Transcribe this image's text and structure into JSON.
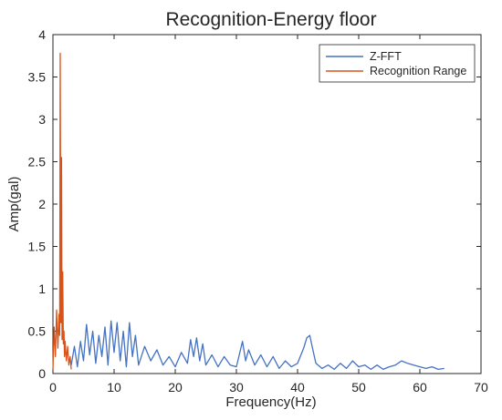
{
  "chart_data": {
    "type": "line",
    "title": "Recognition-Energy floor",
    "xlabel": "Frequency(Hz)",
    "ylabel": "Amp(gal)",
    "xlim": [
      0,
      70
    ],
    "ylim": [
      0,
      4
    ],
    "x_ticks": [
      "0",
      "10",
      "20",
      "30",
      "40",
      "50",
      "60",
      "70"
    ],
    "y_ticks": [
      "0",
      "0.5",
      "1",
      "1.5",
      "2",
      "2.5",
      "3",
      "3.5",
      "4"
    ],
    "grid": false,
    "legend_position": "top-right",
    "series": [
      {
        "name": "Z-FFT",
        "color": "#4472c4",
        "x": [
          3.0,
          3.5,
          4.0,
          4.5,
          5.0,
          5.5,
          6.0,
          6.5,
          7.0,
          7.5,
          8.0,
          8.5,
          9.0,
          9.5,
          10.0,
          10.5,
          11.0,
          11.5,
          12.0,
          12.5,
          13.0,
          13.5,
          14.0,
          15.0,
          16.0,
          17.0,
          18.0,
          19.0,
          20.0,
          21.0,
          22.0,
          22.5,
          23.0,
          23.5,
          24.0,
          24.5,
          25.0,
          26.0,
          27.0,
          28.0,
          29.0,
          30.0,
          31.0,
          31.5,
          32.0,
          33.0,
          34.0,
          35.0,
          36.0,
          37.0,
          38.0,
          39.0,
          40.0,
          41.0,
          41.5,
          42.0,
          42.5,
          43.0,
          44.0,
          45.0,
          46.0,
          47.0,
          48.0,
          49.0,
          50.0,
          51.0,
          52.0,
          53.0,
          54.0,
          55.0,
          56.0,
          57.0,
          58.0,
          59.0,
          60.0,
          61.0,
          62.0,
          63.0,
          64.0
        ],
        "values": [
          0.1,
          0.32,
          0.08,
          0.38,
          0.15,
          0.58,
          0.22,
          0.5,
          0.12,
          0.45,
          0.2,
          0.55,
          0.1,
          0.62,
          0.25,
          0.6,
          0.15,
          0.5,
          0.08,
          0.6,
          0.2,
          0.45,
          0.1,
          0.32,
          0.15,
          0.28,
          0.1,
          0.2,
          0.08,
          0.25,
          0.12,
          0.4,
          0.2,
          0.42,
          0.15,
          0.35,
          0.1,
          0.22,
          0.08,
          0.2,
          0.1,
          0.08,
          0.38,
          0.15,
          0.28,
          0.1,
          0.22,
          0.08,
          0.2,
          0.06,
          0.15,
          0.08,
          0.12,
          0.3,
          0.42,
          0.45,
          0.28,
          0.12,
          0.06,
          0.1,
          0.05,
          0.12,
          0.06,
          0.15,
          0.08,
          0.1,
          0.05,
          0.1,
          0.05,
          0.08,
          0.1,
          0.15,
          0.12,
          0.1,
          0.08,
          0.06,
          0.08,
          0.05,
          0.06
        ]
      },
      {
        "name": "Recognition Range",
        "color": "#d95319",
        "x": [
          0.0,
          0.2,
          0.4,
          0.6,
          0.8,
          1.0,
          1.1,
          1.2,
          1.3,
          1.4,
          1.5,
          1.6,
          1.7,
          1.8,
          1.9,
          2.0,
          2.2,
          2.4,
          2.6,
          2.8,
          3.0
        ],
        "values": [
          0.05,
          0.55,
          0.2,
          0.75,
          0.3,
          0.7,
          0.45,
          3.78,
          0.6,
          2.55,
          0.4,
          1.2,
          0.35,
          0.5,
          0.2,
          0.38,
          0.15,
          0.32,
          0.1,
          0.2,
          0.05
        ]
      }
    ]
  }
}
